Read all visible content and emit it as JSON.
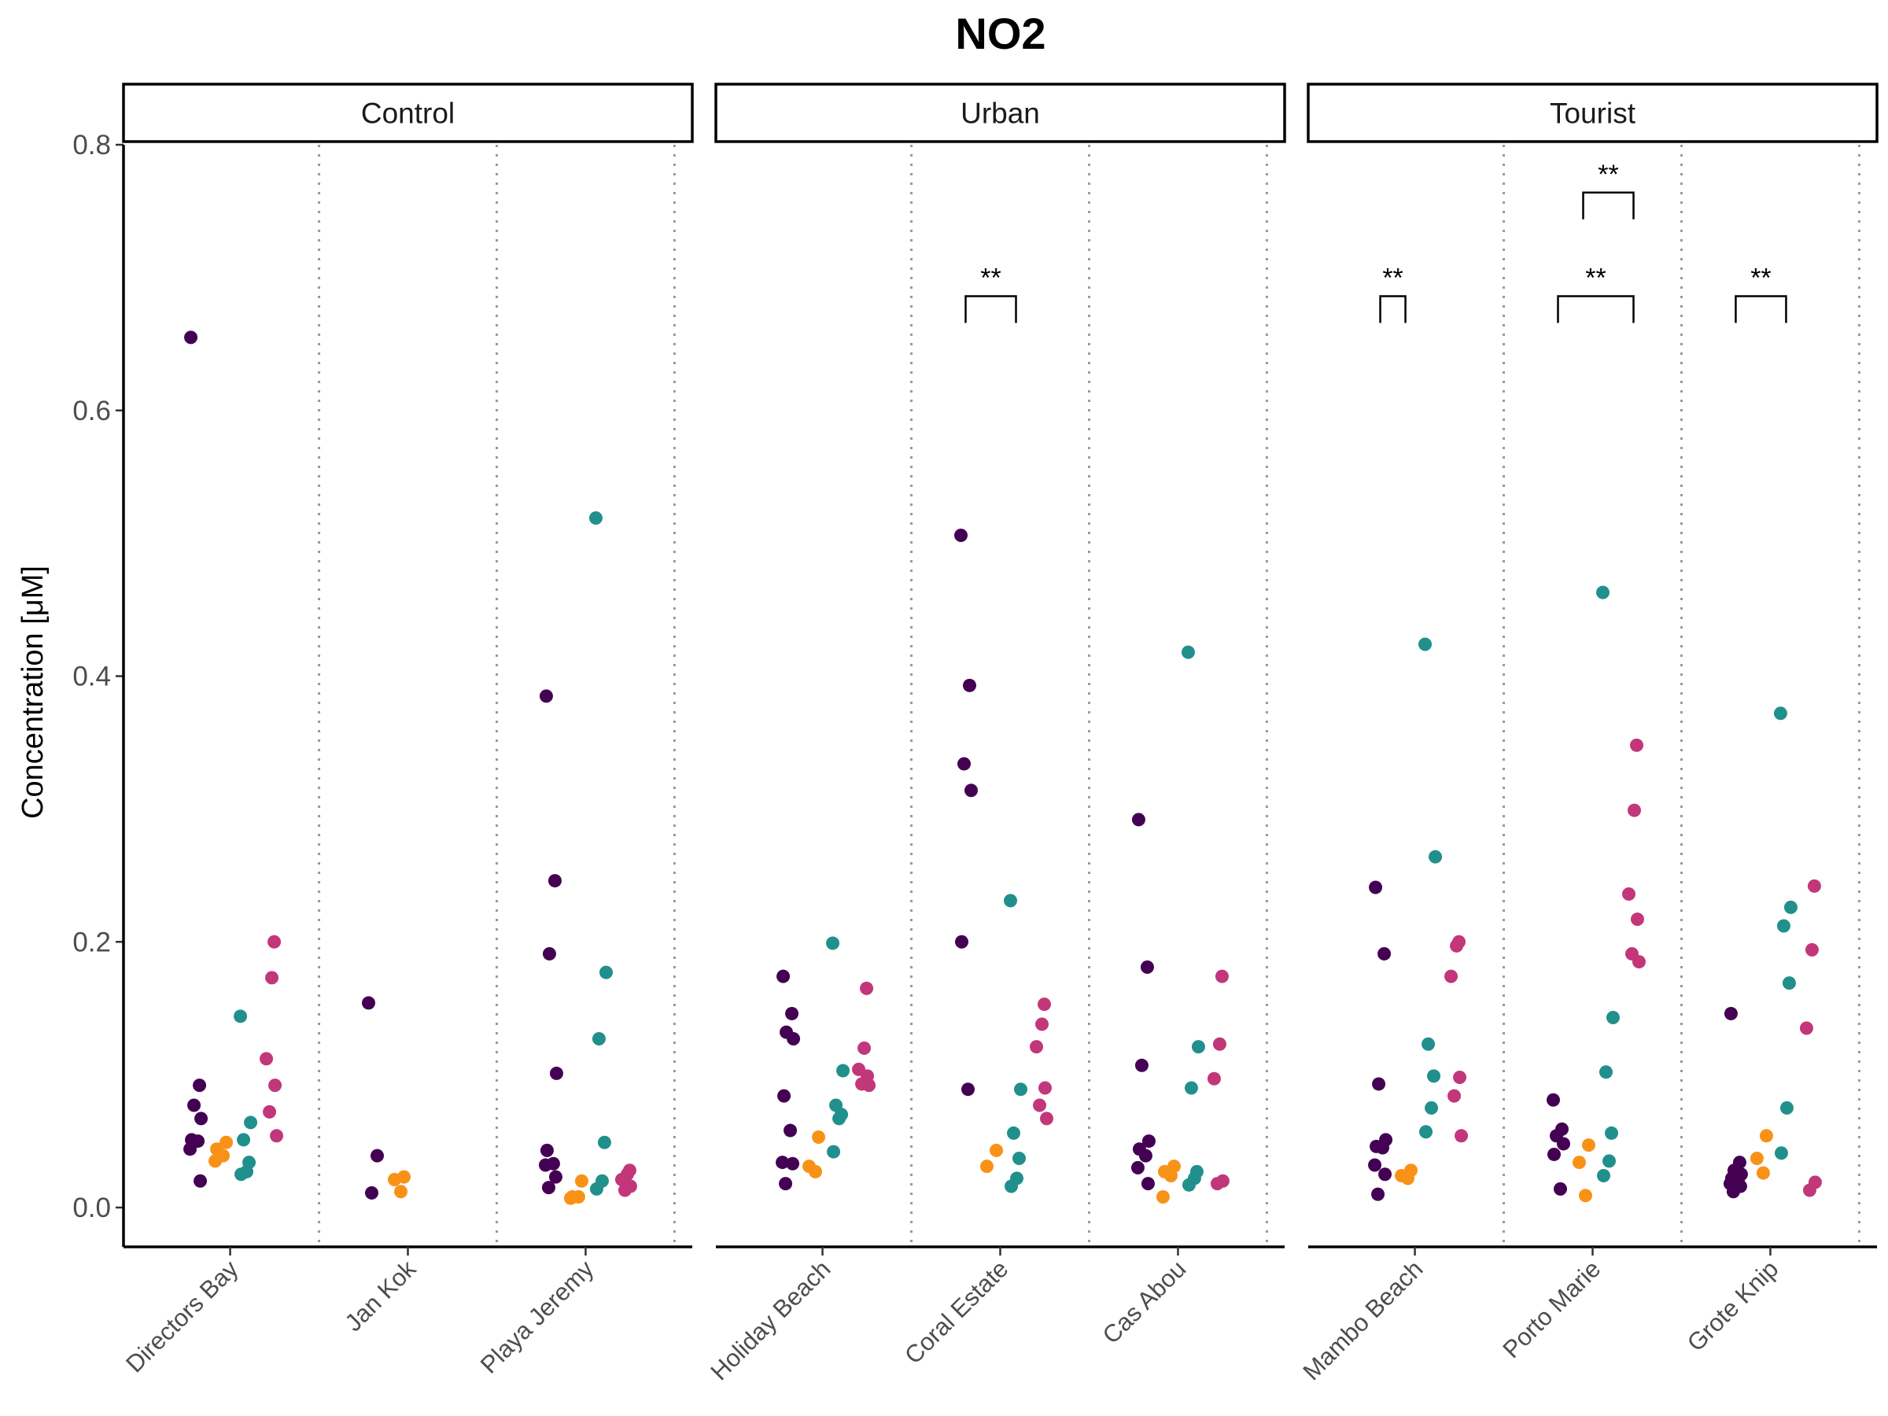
{
  "chart_data": {
    "type": "scatter",
    "title": "NO2",
    "ylabel": "Concentration [μM]",
    "xlabel": "",
    "ylim": [
      -0.03,
      0.8
    ],
    "yticks": [
      "0.0",
      "0.2",
      "0.4",
      "0.6",
      "0.8"
    ],
    "grid": false,
    "group_colors": [
      "#440154",
      "#F89217",
      "#21908C",
      "#C2377A"
    ],
    "panels": [
      {
        "name": "Control",
        "sites": [
          {
            "name": "Directors Bay",
            "groups": [
              [
                0.655,
                0.092,
                0.077,
                0.067,
                0.051,
                0.05,
                0.044,
                0.02
              ],
              [
                0.049,
                0.044,
                0.039,
                0.035
              ],
              [
                0.144,
                0.064,
                0.051,
                0.034,
                0.027,
                0.025
              ],
              [
                0.2,
                0.173,
                0.112,
                0.092,
                0.072,
                0.054
              ]
            ]
          },
          {
            "name": "Jan Kok",
            "groups": [
              [
                0.154,
                0.039,
                0.011
              ],
              [
                0.023,
                0.021,
                0.012
              ],
              [],
              []
            ]
          },
          {
            "name": "Playa Jeremy",
            "groups": [
              [
                0.385,
                0.246,
                0.191,
                0.101,
                0.043,
                0.033,
                0.032,
                0.023,
                0.015
              ],
              [
                0.02,
                0.008,
                0.008,
                0.007
              ],
              [
                0.519,
                0.177,
                0.127,
                0.049,
                0.02,
                0.014
              ],
              [
                0.028,
                0.025,
                0.021,
                0.016,
                0.013
              ]
            ]
          }
        ],
        "brackets": []
      },
      {
        "name": "Urban",
        "sites": [
          {
            "name": "Holiday Beach",
            "groups": [
              [
                0.174,
                0.146,
                0.132,
                0.127,
                0.084,
                0.058,
                0.034,
                0.033,
                0.018
              ],
              [
                0.053,
                0.031,
                0.027
              ],
              [
                0.199,
                0.103,
                0.077,
                0.07,
                0.067,
                0.042
              ],
              [
                0.165,
                0.12,
                0.104,
                0.099,
                0.093,
                0.092
              ]
            ]
          },
          {
            "name": "Coral Estate",
            "groups": [
              [
                0.506,
                0.393,
                0.334,
                0.314,
                0.2,
                0.089
              ],
              [
                0.043,
                0.031
              ],
              [
                0.231,
                0.089,
                0.056,
                0.037,
                0.022,
                0.016
              ],
              [
                0.153,
                0.138,
                0.121,
                0.09,
                0.077,
                0.067
              ]
            ]
          },
          {
            "name": "Cas Abou",
            "groups": [
              [
                0.292,
                0.181,
                0.107,
                0.05,
                0.044,
                0.039,
                0.03,
                0.018
              ],
              [
                0.031,
                0.027,
                0.024,
                0.008
              ],
              [
                0.418,
                0.121,
                0.09,
                0.027,
                0.022,
                0.017
              ],
              [
                0.174,
                0.123,
                0.097,
                0.02,
                0.018
              ]
            ]
          }
        ],
        "brackets": [
          {
            "site": "Coral Estate",
            "from": 0,
            "to": 2,
            "y": 0.686,
            "label": "**"
          }
        ]
      },
      {
        "name": "Tourist",
        "sites": [
          {
            "name": "Mambo Beach",
            "groups": [
              [
                0.241,
                0.191,
                0.093,
                0.051,
                0.046,
                0.045,
                0.032,
                0.025,
                0.01
              ],
              [
                0.028,
                0.024,
                0.022
              ],
              [
                0.424,
                0.264,
                0.123,
                0.099,
                0.075,
                0.057
              ],
              [
                0.2,
                0.197,
                0.174,
                0.098,
                0.084,
                0.054
              ]
            ]
          },
          {
            "name": "Porto Marie",
            "groups": [
              [
                0.081,
                0.059,
                0.054,
                0.048,
                0.04,
                0.014
              ],
              [
                0.047,
                0.034,
                0.009
              ],
              [
                0.463,
                0.143,
                0.102,
                0.056,
                0.035,
                0.024
              ],
              [
                0.348,
                0.299,
                0.236,
                0.217,
                0.191,
                0.185
              ]
            ]
          },
          {
            "name": "Grote Knip",
            "groups": [
              [
                0.146,
                0.034,
                0.028,
                0.025,
                0.022,
                0.02,
                0.018,
                0.016,
                0.012
              ],
              [
                0.054,
                0.037,
                0.026
              ],
              [
                0.372,
                0.226,
                0.212,
                0.169,
                0.075,
                0.041
              ],
              [
                0.242,
                0.194,
                0.135,
                0.019,
                0.013
              ]
            ]
          }
        ],
        "brackets": [
          {
            "site": "Mambo Beach",
            "from": 0,
            "to": 1,
            "y": 0.686,
            "label": "**"
          },
          {
            "site": "Porto Marie",
            "from": 0,
            "to": 3,
            "y": 0.686,
            "label": "**"
          },
          {
            "site": "Porto Marie",
            "from": 1,
            "to": 3,
            "y": 0.764,
            "label": "**"
          },
          {
            "site": "Grote Knip",
            "from": 0,
            "to": 2,
            "y": 0.686,
            "label": "**"
          }
        ]
      }
    ]
  }
}
